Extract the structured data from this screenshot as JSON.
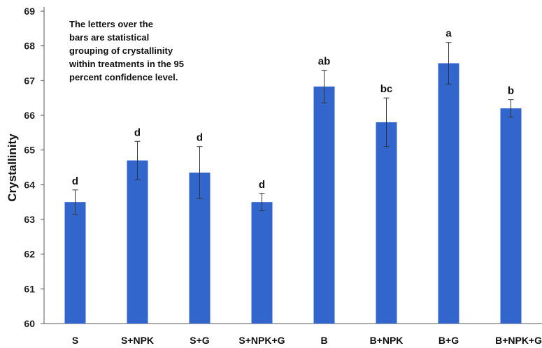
{
  "chart_data": {
    "type": "bar",
    "categories": [
      "S",
      "S+NPK",
      "S+G",
      "S+NPK+G",
      "B",
      "B+NPK",
      "B+G",
      "B+NPK+G"
    ],
    "values": [
      63.5,
      64.7,
      64.35,
      63.5,
      66.83,
      65.8,
      67.5,
      66.2
    ],
    "error": [
      0.35,
      0.55,
      0.75,
      0.25,
      0.47,
      0.7,
      0.6,
      0.25
    ],
    "group_labels": [
      "d",
      "d",
      "d",
      "d",
      "ab",
      "bc",
      "a",
      "b"
    ],
    "ylabel": "Crystallinity",
    "xlabel": "",
    "ylim": [
      60,
      69
    ],
    "yticks": [
      "60",
      "61",
      "62",
      "63",
      "64",
      "65",
      "66",
      "67",
      "68",
      "69"
    ],
    "grid": false,
    "bar_color": "#3366cc",
    "note": [
      "The letters over the",
      "bars are statistical",
      "grouping of crystallinity",
      "within treatments in the 95",
      "percent confidence level."
    ]
  }
}
